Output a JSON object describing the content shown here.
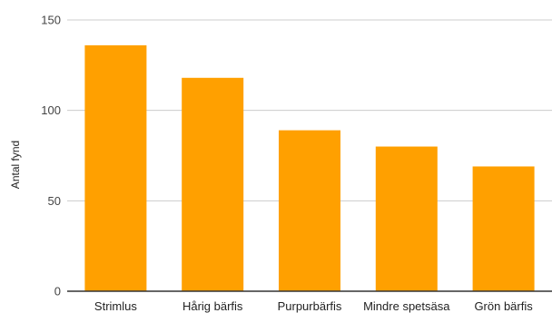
{
  "chart_data": {
    "type": "bar",
    "title": "",
    "xlabel": "",
    "ylabel": "Antal fynd",
    "categories": [
      "Strimlus",
      "Hårig bärfis",
      "Purpurbärfis",
      "Mindre spetsäsa",
      "Grön bärfis"
    ],
    "values": [
      136,
      118,
      89,
      80,
      69
    ],
    "ylim": [
      0,
      150
    ],
    "yticks": [
      0,
      50,
      100,
      150
    ],
    "grid": true,
    "legend": "none",
    "bar_color": "#FFA000",
    "grid_color": "#CCCCCC",
    "axis_color": "#333333"
  }
}
